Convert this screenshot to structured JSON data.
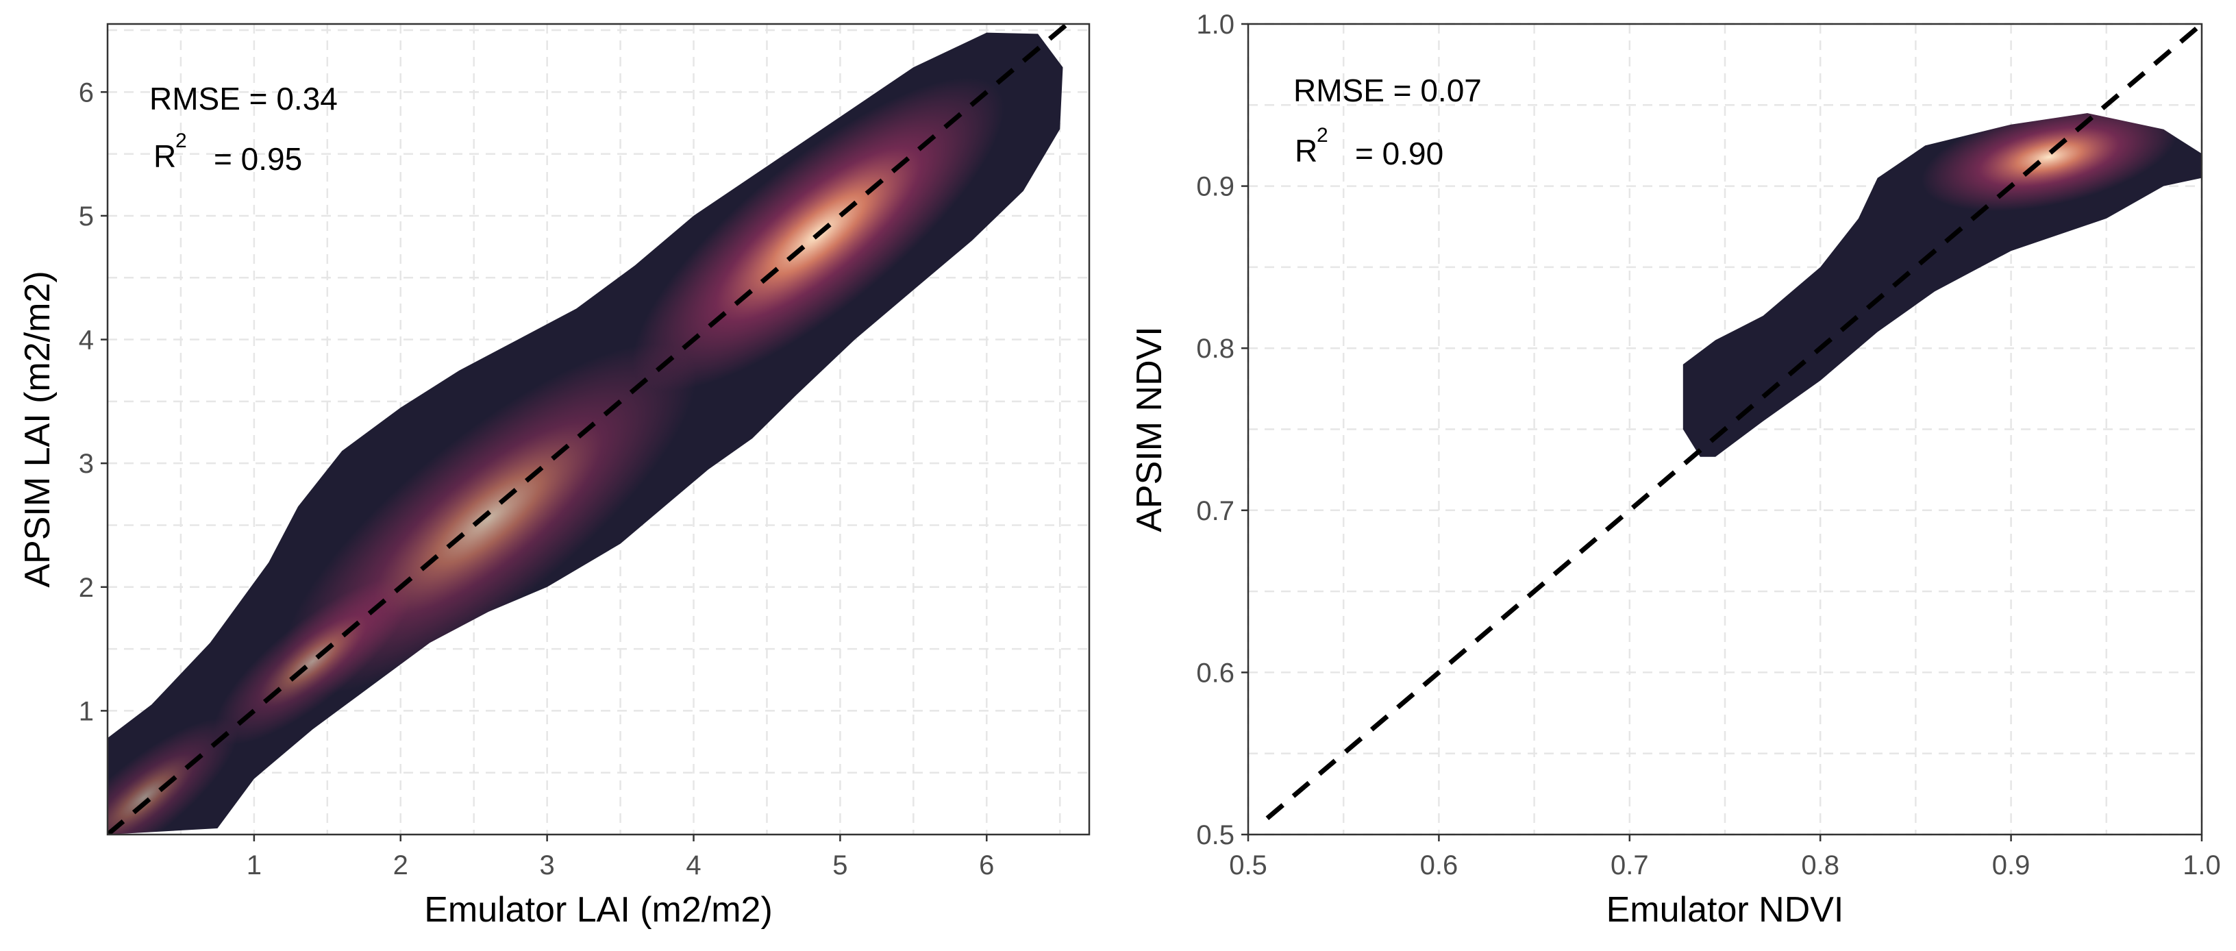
{
  "chart_data": [
    {
      "type": "density",
      "id": "lai",
      "xlabel": "Emulator LAI (m2/m2)",
      "ylabel": "APSIM LAI (m2/m2)",
      "xlim": [
        0,
        6.7
      ],
      "ylim": [
        0,
        6.55
      ],
      "xticks": [
        1,
        2,
        3,
        4,
        5,
        6
      ],
      "yticks": [
        1,
        2,
        3,
        4,
        5,
        6
      ],
      "grid": true,
      "reference_line": "y = x (dashed)",
      "annotations": {
        "rmse": "RMSE = 0.34",
        "r2_label": "R",
        "r2_exp": "2",
        "r2_value": "= 0.95"
      },
      "density_outline": [
        [
          0,
          0.78
        ],
        [
          0.3,
          1.05
        ],
        [
          0.7,
          1.55
        ],
        [
          1.1,
          2.2
        ],
        [
          1.3,
          2.65
        ],
        [
          1.6,
          3.1
        ],
        [
          2.0,
          3.45
        ],
        [
          2.4,
          3.75
        ],
        [
          2.8,
          4.0
        ],
        [
          3.2,
          4.25
        ],
        [
          3.6,
          4.6
        ],
        [
          4.0,
          5.0
        ],
        [
          4.5,
          5.4
        ],
        [
          5.0,
          5.8
        ],
        [
          5.5,
          6.2
        ],
        [
          6.0,
          6.48
        ],
        [
          6.35,
          6.47
        ],
        [
          6.52,
          6.2
        ],
        [
          6.5,
          5.7
        ],
        [
          6.25,
          5.2
        ],
        [
          5.9,
          4.8
        ],
        [
          5.5,
          4.4
        ],
        [
          5.1,
          4.0
        ],
        [
          4.7,
          3.55
        ],
        [
          4.4,
          3.2
        ],
        [
          4.1,
          2.95
        ],
        [
          3.85,
          2.7
        ],
        [
          3.5,
          2.35
        ],
        [
          3.0,
          2.0
        ],
        [
          2.6,
          1.8
        ],
        [
          2.2,
          1.55
        ],
        [
          1.8,
          1.2
        ],
        [
          1.4,
          0.85
        ],
        [
          1.0,
          0.45
        ],
        [
          0.75,
          0.05
        ],
        [
          0,
          0
        ],
        [
          0,
          0.78
        ]
      ],
      "density_peaks": [
        {
          "x": 2.6,
          "y": 2.55,
          "intensity": 0.75
        },
        {
          "x": 4.85,
          "y": 4.85,
          "intensity": 1.0
        },
        {
          "x": 0.25,
          "y": 0.3,
          "intensity": 0.55
        },
        {
          "x": 1.4,
          "y": 1.4,
          "intensity": 0.6
        }
      ],
      "colors": {
        "low": "#1f1d33",
        "mid": "#b5366b",
        "high": "#fde6c8"
      }
    },
    {
      "type": "density",
      "id": "ndvi",
      "xlabel": "Emulator NDVI",
      "ylabel": "APSIM NDVI",
      "xlim": [
        0.5,
        1.0
      ],
      "ylim": [
        0.5,
        1.0
      ],
      "xticks": [
        "0.5",
        "0.6",
        "0.7",
        "0.8",
        "0.9",
        "1.0"
      ],
      "yticks": [
        "0.5",
        "0.6",
        "0.7",
        "0.8",
        "0.9",
        "1.0"
      ],
      "grid": true,
      "reference_line": "y = x (dashed)",
      "annotations": {
        "rmse": "RMSE = 0.07",
        "r2_label": "R",
        "r2_exp": "2",
        "r2_value": "= 0.90"
      },
      "density_outline": [
        [
          0.737,
          0.733
        ],
        [
          0.728,
          0.75
        ],
        [
          0.728,
          0.79
        ],
        [
          0.745,
          0.805
        ],
        [
          0.77,
          0.82
        ],
        [
          0.8,
          0.85
        ],
        [
          0.82,
          0.88
        ],
        [
          0.83,
          0.905
        ],
        [
          0.855,
          0.925
        ],
        [
          0.9,
          0.938
        ],
        [
          0.94,
          0.945
        ],
        [
          0.98,
          0.935
        ],
        [
          1.0,
          0.92
        ],
        [
          1.0,
          0.905
        ],
        [
          0.98,
          0.9
        ],
        [
          0.95,
          0.88
        ],
        [
          0.9,
          0.86
        ],
        [
          0.86,
          0.835
        ],
        [
          0.83,
          0.81
        ],
        [
          0.8,
          0.78
        ],
        [
          0.77,
          0.755
        ],
        [
          0.745,
          0.733
        ],
        [
          0.737,
          0.733
        ]
      ],
      "density_peaks": [
        {
          "x": 0.92,
          "y": 0.918,
          "intensity": 1.0
        }
      ],
      "colors": {
        "low": "#1f1d33",
        "mid": "#b5366b",
        "high": "#fde6c8"
      }
    }
  ]
}
